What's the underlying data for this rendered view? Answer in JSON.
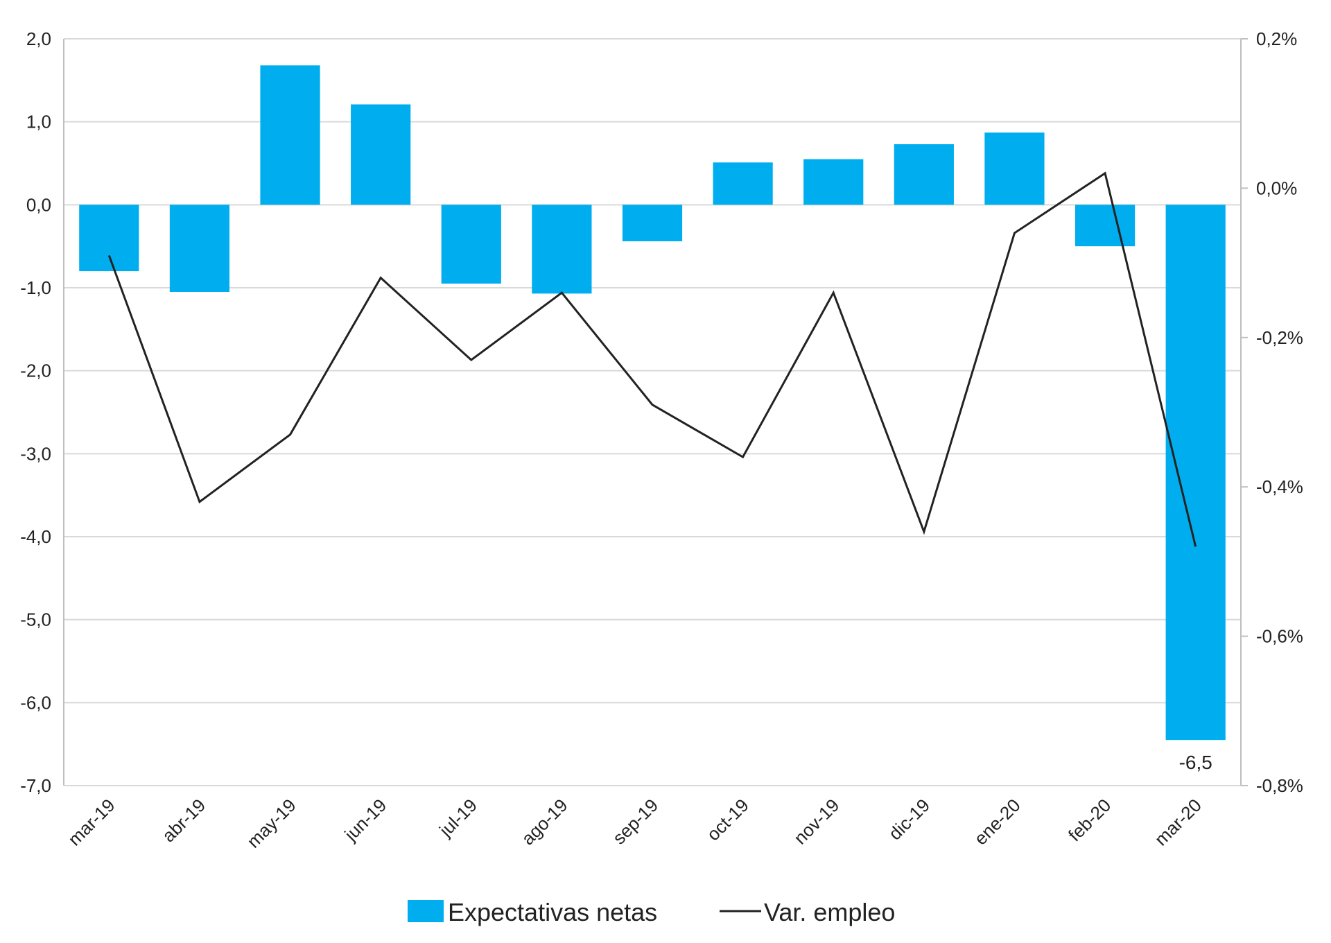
{
  "chart_data": {
    "type": "bar",
    "categories": [
      "mar-19",
      "abr-19",
      "may-19",
      "jun-19",
      "jul-19",
      "ago-19",
      "sep-19",
      "oct-19",
      "nov-19",
      "dic-19",
      "ene-20",
      "feb-20",
      "mar-20"
    ],
    "series": [
      {
        "name": "Expectativas netas",
        "type": "bar",
        "axis": "left",
        "color": "#00AEEF",
        "values": [
          -0.8,
          -1.05,
          1.68,
          1.21,
          -0.95,
          -1.07,
          -0.44,
          0.51,
          0.55,
          0.73,
          0.87,
          -0.5,
          -6.45
        ]
      },
      {
        "name": "Var. empleo",
        "type": "line",
        "axis": "right",
        "color": "#222222",
        "values": [
          -0.09,
          -0.42,
          -0.33,
          -0.12,
          -0.23,
          -0.14,
          -0.29,
          -0.36,
          -0.14,
          -0.46,
          -0.06,
          0.02,
          -0.48
        ]
      }
    ],
    "y_left": {
      "ylim": [
        -7.0,
        2.0
      ],
      "ticks": [
        2.0,
        1.0,
        0.0,
        -1.0,
        -2.0,
        -3.0,
        -4.0,
        -5.0,
        -6.0,
        -7.0
      ],
      "tick_labels": [
        "2,0",
        "1,0",
        "0,0",
        "-1,0",
        "-2,0",
        "-3,0",
        "-4,0",
        "-5,0",
        "-6,0",
        "-7,0"
      ]
    },
    "y_right": {
      "ylim": [
        -0.8,
        0.2
      ],
      "ticks": [
        0.2,
        0.0,
        -0.2,
        -0.4,
        -0.6,
        -0.8
      ],
      "tick_labels": [
        "0,2%",
        "0,0%",
        "-0,2%",
        "-0,4%",
        "-0,6%",
        "-0,8%"
      ]
    },
    "annotations": [
      {
        "category": "mar-20",
        "text": "-6,5"
      }
    ],
    "grid": true,
    "legend_position": "bottom"
  }
}
